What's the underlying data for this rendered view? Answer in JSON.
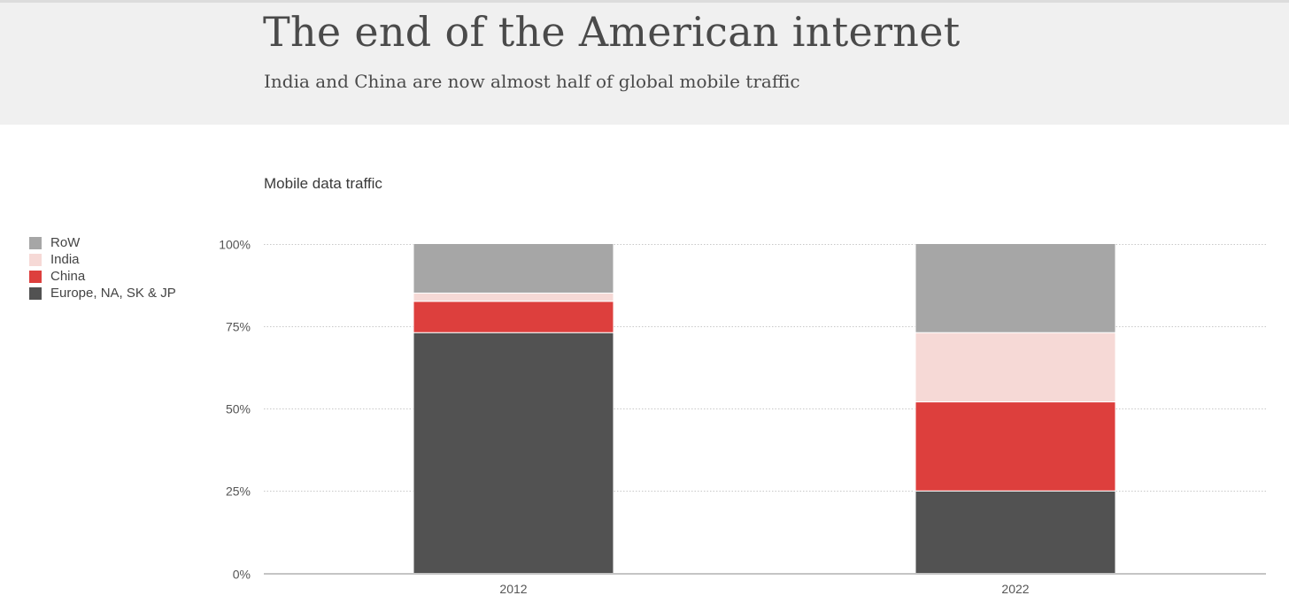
{
  "header": {
    "title": "The end of the American internet",
    "subtitle": "India and China are now almost half of global mobile traffic"
  },
  "chart_data": {
    "type": "bar",
    "stacked": true,
    "title": "Mobile data traffic",
    "categories": [
      "2012",
      "2022"
    ],
    "series": [
      {
        "name": "Europe, NA, SK & JP",
        "values": [
          73,
          25
        ],
        "color": "#525252"
      },
      {
        "name": "China",
        "values": [
          9.5,
          27
        ],
        "color": "#dd3f3d"
      },
      {
        "name": "India",
        "values": [
          2.5,
          21
        ],
        "color": "#f6d9d6"
      },
      {
        "name": "RoW",
        "values": [
          15,
          27
        ],
        "color": "#a6a6a6"
      }
    ],
    "legend_order": [
      "RoW",
      "India",
      "China",
      "Europe, NA, SK & JP"
    ],
    "yticks": [
      {
        "value": 0,
        "label": "0%"
      },
      {
        "value": 25,
        "label": "25%"
      },
      {
        "value": 50,
        "label": "50%"
      },
      {
        "value": 75,
        "label": "75%"
      },
      {
        "value": 100,
        "label": "100%"
      }
    ],
    "ylim": [
      0,
      100
    ],
    "grid": true,
    "legend_position": "left"
  }
}
